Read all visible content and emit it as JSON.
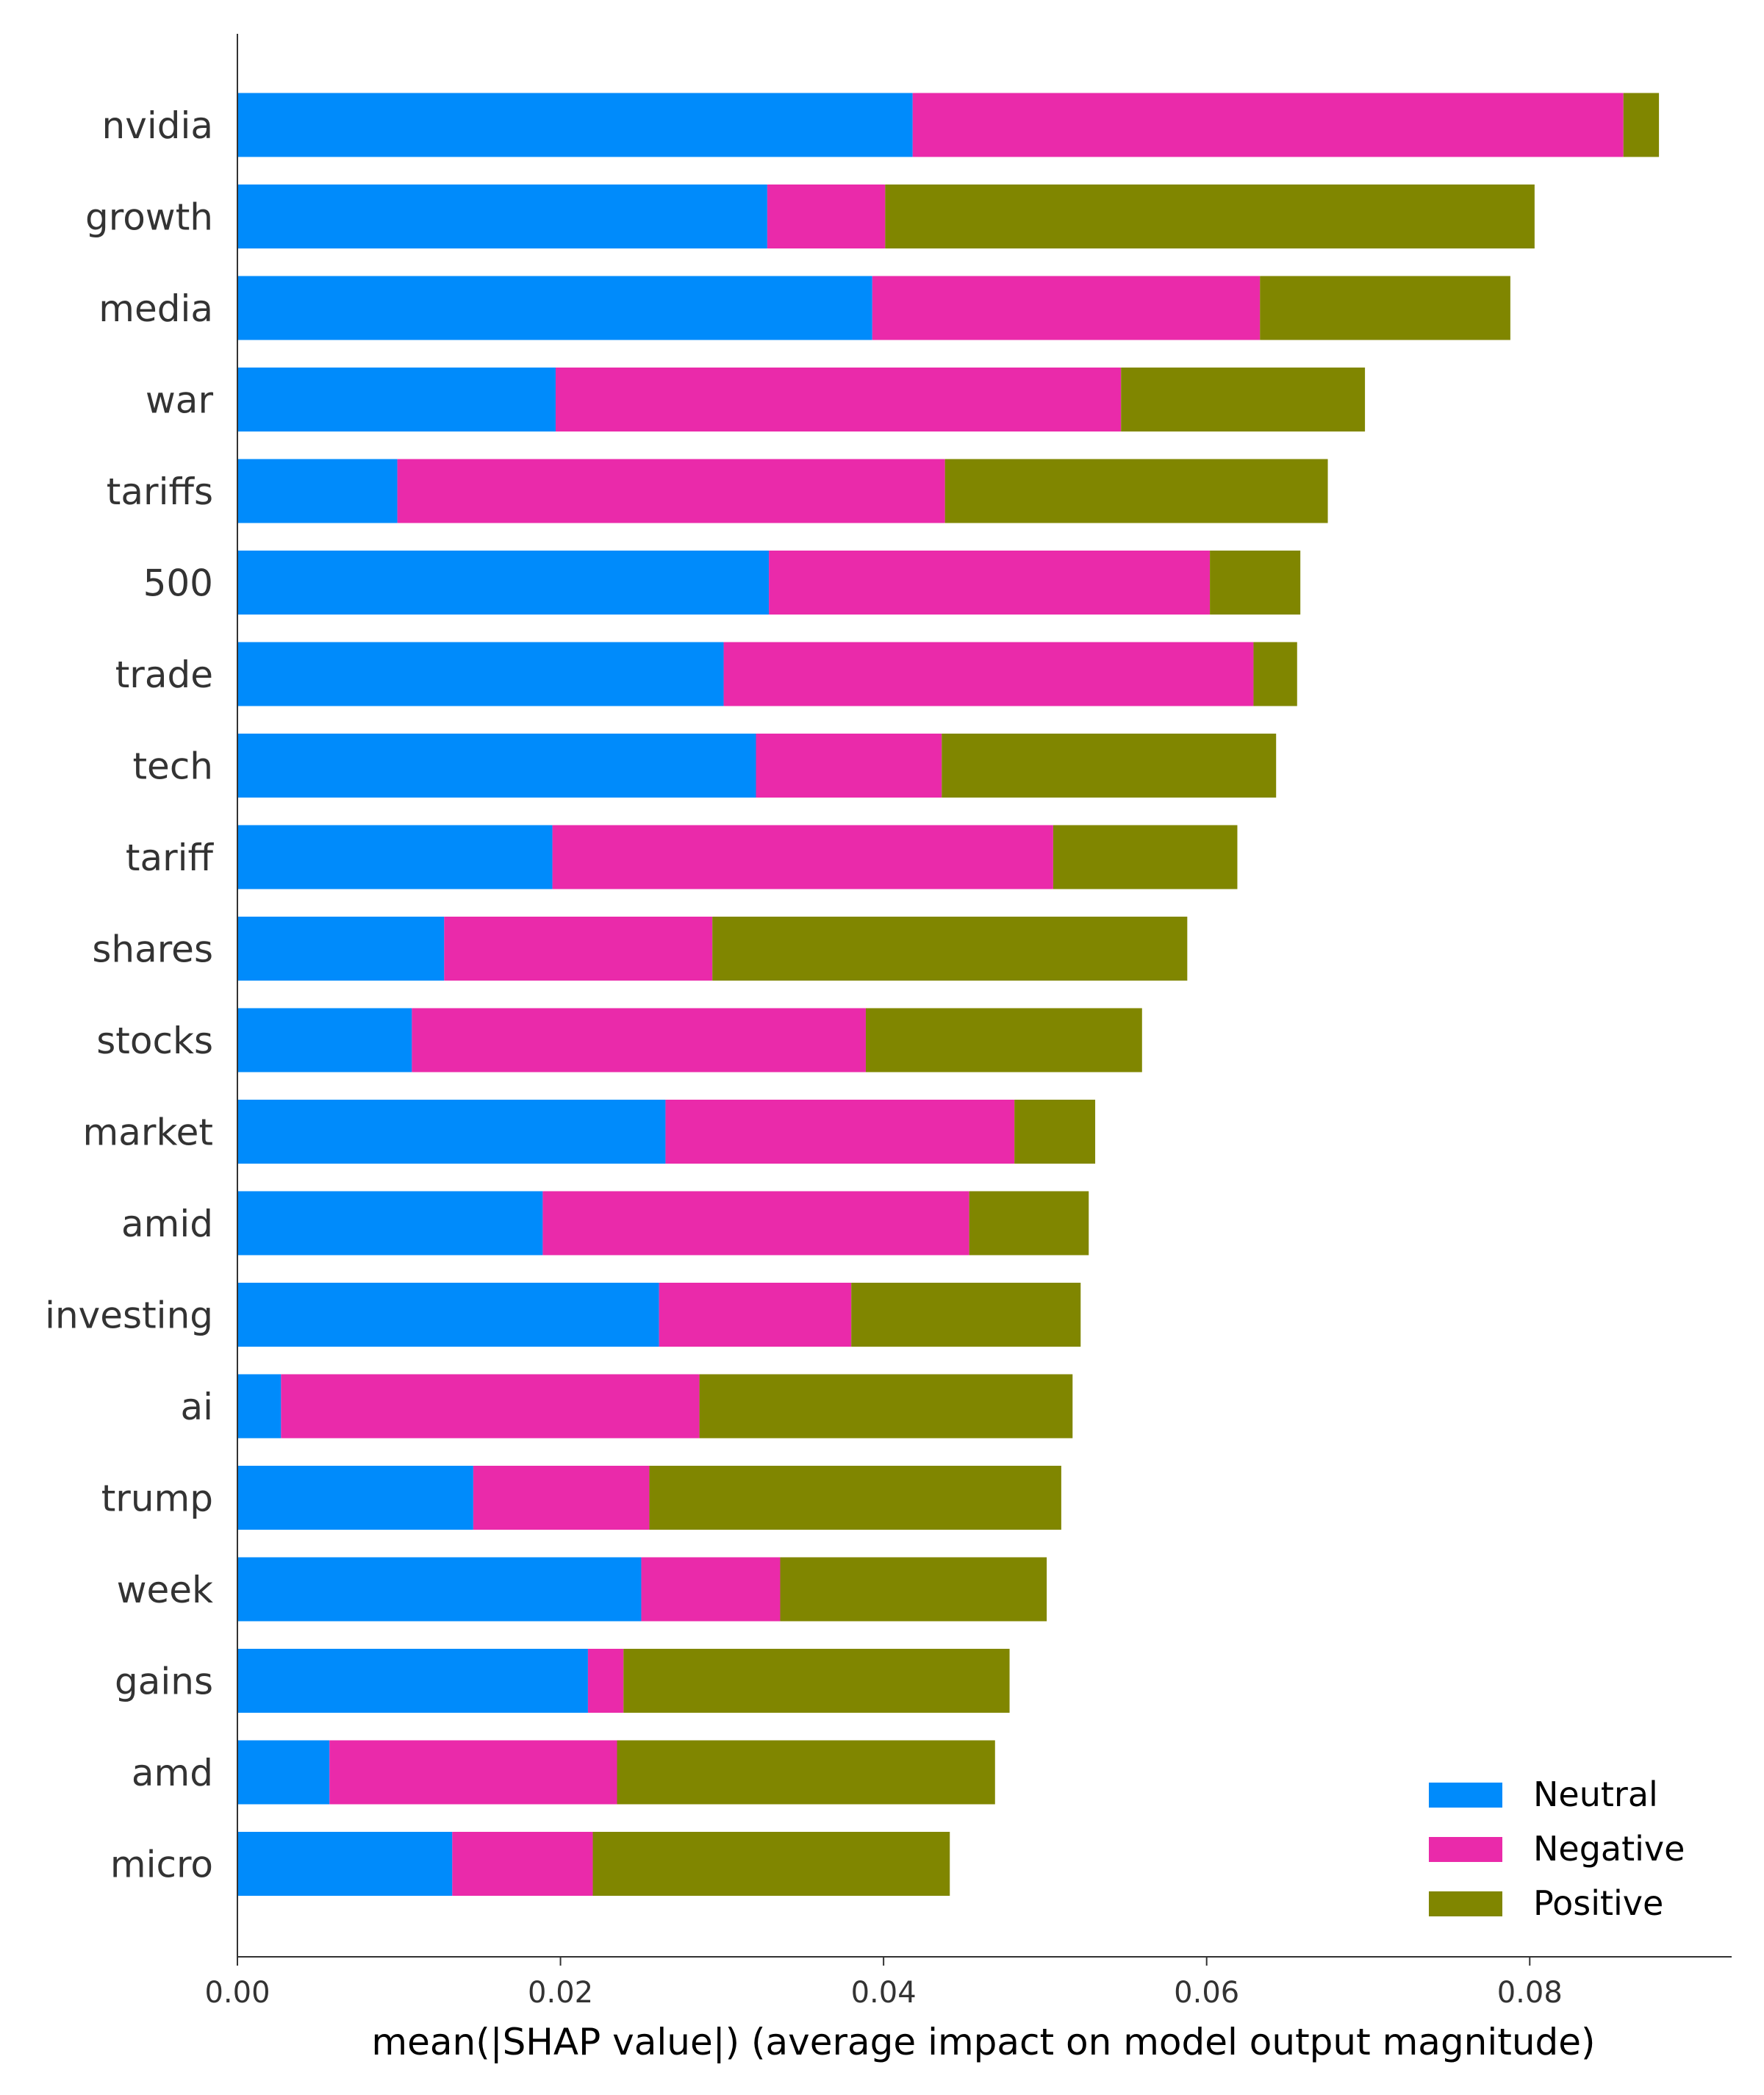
{
  "chart_data": {
    "type": "bar",
    "orientation": "horizontal",
    "stacked": true,
    "title": "",
    "xlabel": "mean(|SHAP value|) (average impact on model output magnitude)",
    "ylabel": "",
    "xlim": [
      0,
      0.0925
    ],
    "xticks": [
      0.0,
      0.02,
      0.04,
      0.06,
      0.08
    ],
    "xtick_labels": [
      "0.00",
      "0.02",
      "0.04",
      "0.06",
      "0.08"
    ],
    "grid": false,
    "legend_position": "bottom-right",
    "categories": [
      "nvidia",
      "growth",
      "media",
      "war",
      "tariffs",
      "500",
      "trade",
      "tech",
      "tariff",
      "shares",
      "stocks",
      "market",
      "amid",
      "investing",
      "ai",
      "trump",
      "week",
      "gains",
      "amd",
      "micro"
    ],
    "series": [
      {
        "name": "Neutral",
        "color": "#008bfb",
        "values": [
          0.0418,
          0.0328,
          0.0393,
          0.0197,
          0.0099,
          0.0329,
          0.0301,
          0.0321,
          0.0195,
          0.0128,
          0.0108,
          0.0265,
          0.0189,
          0.0261,
          0.0027,
          0.0146,
          0.025,
          0.0217,
          0.0057,
          0.0133
        ]
      },
      {
        "name": "Negative",
        "color": "#ea2aaa",
        "values": [
          0.044,
          0.0073,
          0.024,
          0.035,
          0.0339,
          0.0273,
          0.0328,
          0.0115,
          0.031,
          0.0166,
          0.0281,
          0.0216,
          0.0264,
          0.0119,
          0.0259,
          0.0109,
          0.0086,
          0.0022,
          0.0178,
          0.0087
        ]
      },
      {
        "name": "Positive",
        "color": "#808600",
        "values": [
          0.0022,
          0.0402,
          0.0155,
          0.0151,
          0.0237,
          0.0056,
          0.0027,
          0.0207,
          0.0114,
          0.0294,
          0.0171,
          0.005,
          0.0074,
          0.0142,
          0.0231,
          0.0255,
          0.0165,
          0.0239,
          0.0234,
          0.0221
        ]
      }
    ]
  }
}
